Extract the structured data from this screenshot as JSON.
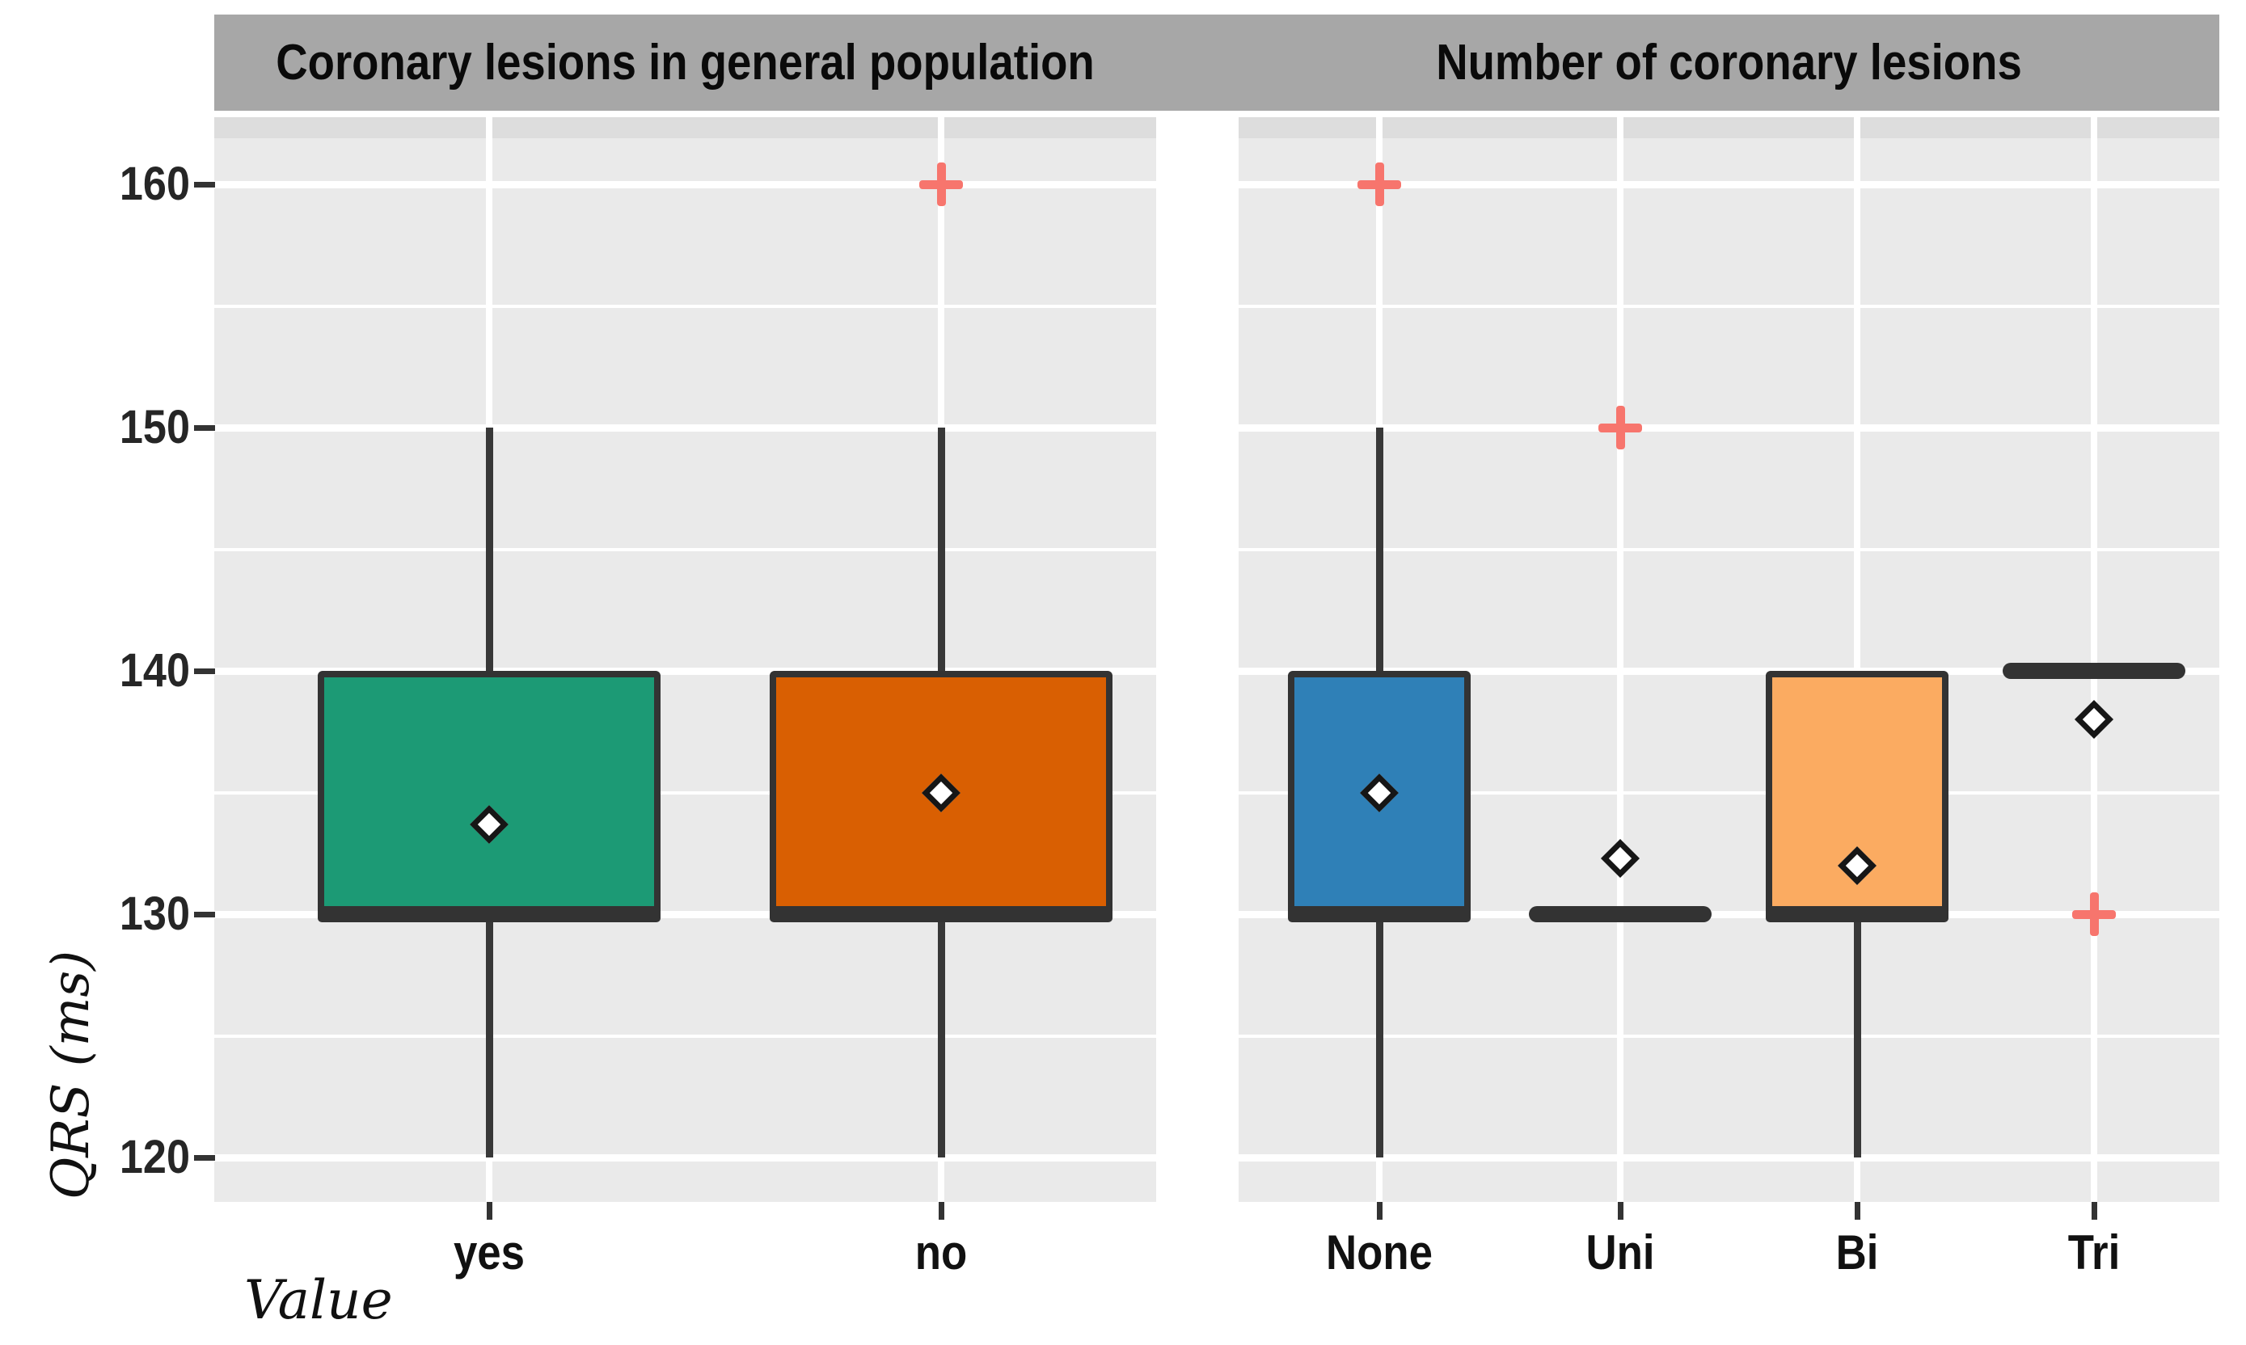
{
  "chart_data": {
    "type": "boxplot",
    "xlabel": "Value",
    "ylabel": "QRS (ms)",
    "ylim": [
      116,
      163
    ],
    "yticks": [
      160,
      150,
      140,
      130,
      120
    ],
    "ytick_labels": [
      "160",
      "150",
      "140",
      "130",
      "120"
    ],
    "grid": "major and minor white gridlines on gray panel background",
    "legend": "none",
    "panels": [
      {
        "facet_label": "Coronary lesions in general population",
        "groups": [
          {
            "label": "yes",
            "fill": "#1c9a75",
            "q1": 130,
            "median": 130,
            "q3": 140,
            "whisker_low": 120,
            "whisker_high": 150,
            "mean": 133.7,
            "outliers": []
          },
          {
            "label": "no",
            "fill": "#d95f02",
            "q1": 130,
            "median": 130,
            "q3": 140,
            "whisker_low": 120,
            "whisker_high": 150,
            "mean": 135,
            "outliers": [
              160
            ]
          }
        ]
      },
      {
        "facet_label": "Number of coronary lesions",
        "groups": [
          {
            "label": "None",
            "fill": "#2f80b7",
            "q1": 130,
            "median": 130,
            "q3": 140,
            "whisker_low": 120,
            "whisker_high": 150,
            "mean": 135,
            "outliers": [
              160
            ]
          },
          {
            "label": "Uni",
            "fill": null,
            "q1": 130,
            "median": 130,
            "q3": 130,
            "whisker_low": 130,
            "whisker_high": 130,
            "mean": 132.3,
            "outliers": [
              150
            ]
          },
          {
            "label": "Bi",
            "fill": "#fbab61",
            "q1": 130,
            "median": 130,
            "q3": 140,
            "whisker_low": 120,
            "whisker_high": 140,
            "mean": 132,
            "outliers": []
          },
          {
            "label": "Tri",
            "fill": null,
            "q1": 140,
            "median": 140,
            "q3": 140,
            "whisker_low": 140,
            "whisker_high": 140,
            "mean": 138,
            "outliers": [
              130
            ]
          }
        ]
      }
    ]
  },
  "style": {
    "strip_bg": "#a7a7a7",
    "panel_bg": "#eaeaea",
    "panel_topband": "#dddddd",
    "gridline": "#ffffff",
    "box_border": "#333333",
    "whisker": "#383838",
    "median_line": "#333333",
    "mean_marker": "#ffffff",
    "mean_marker_border": "#161616",
    "outlier": "#f7756d"
  }
}
